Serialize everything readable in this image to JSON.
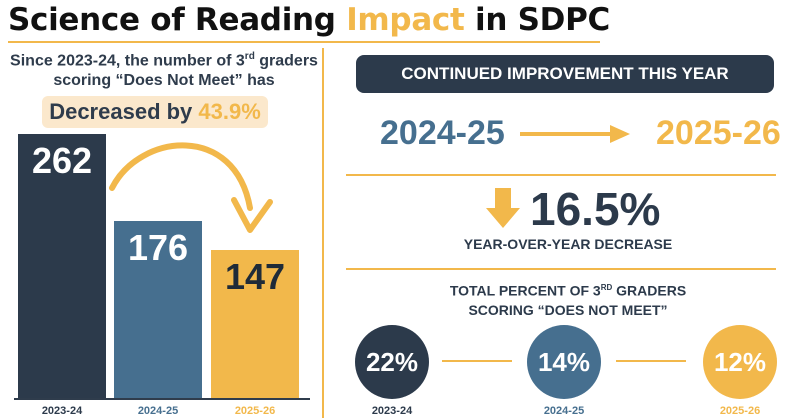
{
  "header": {
    "title_part1": "Science of Reading ",
    "title_accent": "Impact",
    "title_part2": " in SDPC"
  },
  "left": {
    "desc_line1_pre": "Since 2023-24, the number of 3",
    "desc_line1_sup": "rd",
    "desc_line1_post": " graders",
    "desc_line2": "scoring “Does Not Meet” has",
    "decrease_label": "Decreased by ",
    "decrease_value": "43.9%"
  },
  "chart_data": {
    "type": "bar",
    "categories": [
      "2023-24",
      "2024-25",
      "2025-26"
    ],
    "values": [
      262,
      176,
      147
    ],
    "value_labels": [
      "262",
      "176",
      "147"
    ],
    "colors": [
      "#2c3a4b",
      "#466f8f",
      "#f2b84b"
    ],
    "label_colors": [
      "#2c3a4b",
      "#466f8f",
      "#f2b84b"
    ],
    "value_text_colors": [
      "#ffffff",
      "#ffffff",
      "#1f2b38"
    ],
    "ylim": [
      0,
      262
    ]
  },
  "right": {
    "banner": "CONTINUED IMPROVEMENT THIS YEAR",
    "year_from": "2024-25",
    "year_to": "2025-26",
    "yoy_value": "16.5%",
    "yoy_label": "YEAR-OVER-YEAR DECREASE",
    "total_line1_pre": "TOTAL PERCENT OF 3",
    "total_line1_sup": "RD",
    "total_line1_post": " GRADERS",
    "total_line2": "SCORING “DOES NOT MEET”",
    "circles": [
      {
        "value": "22%",
        "year": "2023-24"
      },
      {
        "value": "14%",
        "year": "2024-25"
      },
      {
        "value": "12%",
        "year": "2025-26"
      }
    ]
  },
  "colors": {
    "navy": "#2c3a4b",
    "steel": "#466f8f",
    "gold": "#f2b84b",
    "pill": "#fbe8cc"
  },
  "icons": [
    "curved-arrow-icon",
    "right-arrow-icon",
    "down-arrow-icon"
  ]
}
